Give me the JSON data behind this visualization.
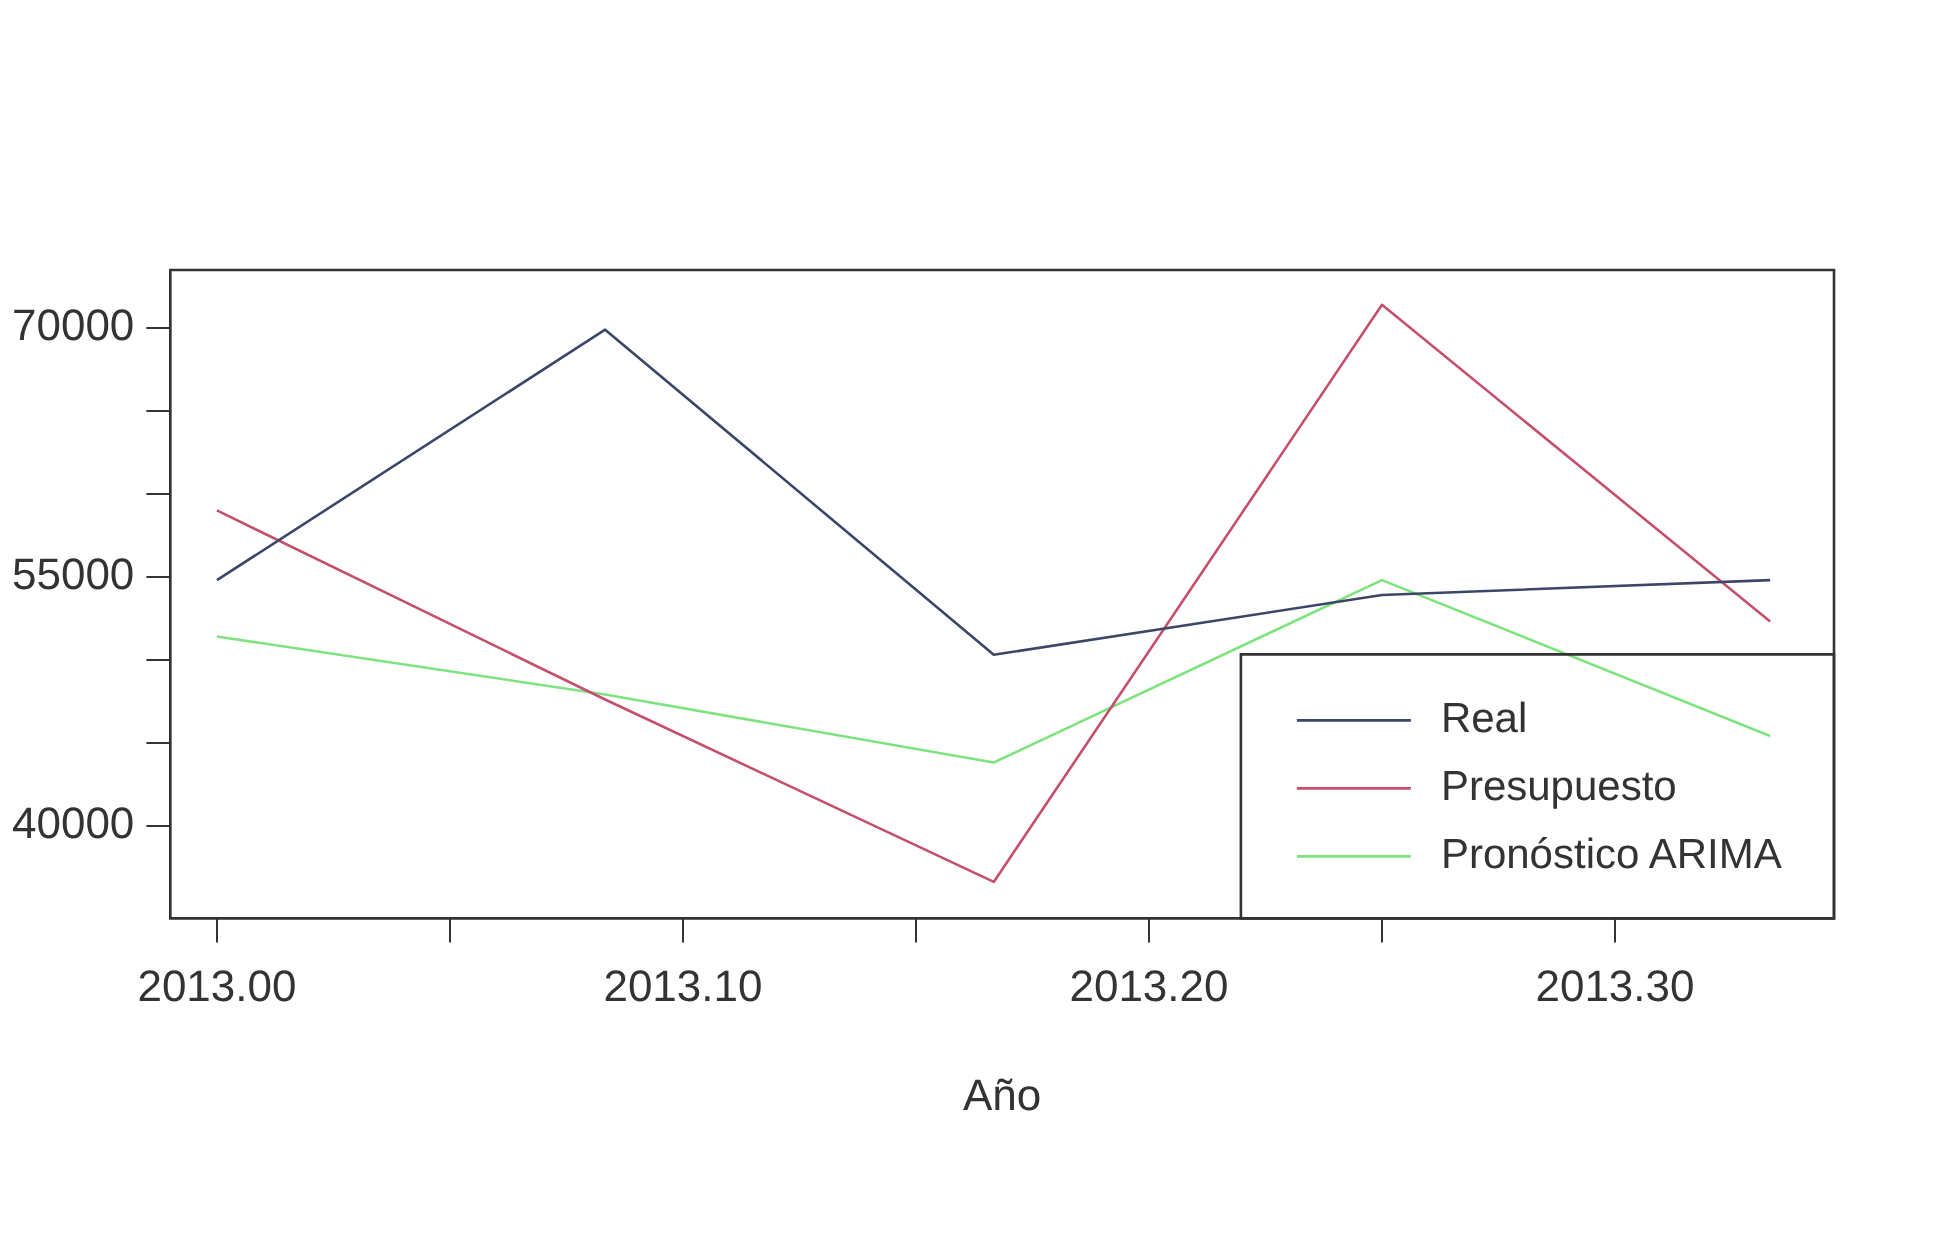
{
  "chart_data": {
    "type": "line",
    "xlabel": "Año",
    "x": [
      2013.0,
      2013.0833,
      2013.1667,
      2013.25,
      2013.3333
    ],
    "series": [
      {
        "name": "Real",
        "color": "#3b4668",
        "values": [
          54800,
          69900,
          50300,
          53900,
          54800
        ]
      },
      {
        "name": "Presupuesto",
        "color": "#c4506c",
        "values": [
          59000,
          47600,
          36600,
          71400,
          52300
        ]
      },
      {
        "name": "Pronóstico ARIMA",
        "color": "#7ee37e",
        "values": [
          51400,
          47900,
          43800,
          54800,
          45400
        ]
      }
    ],
    "xlim": [
      2012.99,
      2013.347
    ],
    "ylim": [
      34400,
      73500
    ],
    "xticks": [
      {
        "value": 2013.0,
        "label": "2013.00"
      },
      {
        "value": 2013.05,
        "label": null
      },
      {
        "value": 2013.1,
        "label": "2013.10"
      },
      {
        "value": 2013.15,
        "label": null
      },
      {
        "value": 2013.2,
        "label": "2013.20"
      },
      {
        "value": 2013.25,
        "label": null
      },
      {
        "value": 2013.3,
        "label": "2013.30"
      }
    ],
    "yticks": [
      40000,
      {
        "value": 45000,
        "label": null
      },
      {
        "value": 50000,
        "label": null
      },
      55000,
      {
        "value": 60000,
        "label": null
      },
      {
        "value": 65000,
        "label": null
      },
      70000
    ],
    "grid": false,
    "legend": "bottom right",
    "marker": "none",
    "line_style": "solid"
  }
}
